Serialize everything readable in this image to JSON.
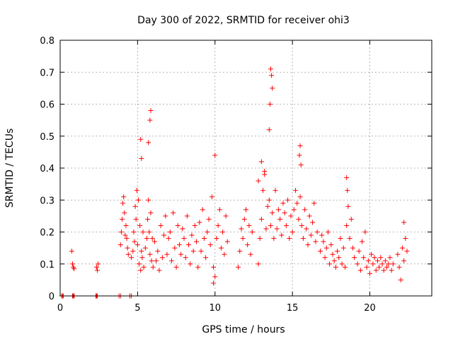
{
  "chart_data": {
    "type": "scatter",
    "title": "Day 300 of 2022, SRMTID for receiver ohi3",
    "xlabel": "GPS time / hours",
    "ylabel": "SRMTID / TECUs",
    "xlim": [
      0,
      24
    ],
    "ylim": [
      0,
      0.8
    ],
    "xticks": [
      0,
      5,
      10,
      15,
      20
    ],
    "yticks": [
      0,
      0.1,
      0.2,
      0.3,
      0.4,
      0.5,
      0.6,
      0.7,
      0.8
    ],
    "xtick_labels": [
      "0",
      "5",
      "10",
      "15",
      "20"
    ],
    "ytick_labels": [
      "0",
      "0.1",
      "0.2",
      "0.3",
      "0.4",
      "0.5",
      "0.6",
      "0.7",
      "0.8"
    ],
    "grid": true,
    "marker": "+",
    "color": "#ff0000",
    "series": [
      {
        "name": "SRMTID",
        "x": [
          0.1,
          0.15,
          0.2,
          0.8,
          0.8,
          0.85,
          0.9,
          0.9,
          2.3,
          2.35,
          2.4,
          3.8,
          3.9,
          4.5,
          4.6,
          0.75,
          0.8,
          0.85,
          0.9,
          2.35,
          2.4,
          2.45,
          3.9,
          3.95,
          4.0,
          4.05,
          4.1,
          4.15,
          4.2,
          4.25,
          4.3,
          4.35,
          4.4,
          4.6,
          4.7,
          4.75,
          4.8,
          4.85,
          4.9,
          4.95,
          5.0,
          5.05,
          5.1,
          5.15,
          5.2,
          5.25,
          5.3,
          5.35,
          5.4,
          5.5,
          5.6,
          5.65,
          5.7,
          5.75,
          5.8,
          5.85,
          5.9,
          5.95,
          6.0,
          6.1,
          6.2,
          6.3,
          6.4,
          6.5,
          6.6,
          6.7,
          6.8,
          6.9,
          7.0,
          7.1,
          7.2,
          7.3,
          7.4,
          7.5,
          7.6,
          7.7,
          7.8,
          7.9,
          8.0,
          8.1,
          8.2,
          8.3,
          8.4,
          8.5,
          8.6,
          8.7,
          8.8,
          8.9,
          9.0,
          9.1,
          9.2,
          9.3,
          9.4,
          9.5,
          9.6,
          9.7,
          9.8,
          9.9,
          10.0,
          10.1,
          10.2,
          10.3,
          10.4,
          10.5,
          10.6,
          10.7,
          10.8,
          11.5,
          11.6,
          11.7,
          11.8,
          11.9,
          12.0,
          12.1,
          12.2,
          12.3,
          12.4,
          12.8,
          12.9,
          13.0,
          13.1,
          13.2,
          13.3,
          13.4,
          13.5,
          13.6,
          13.7,
          13.8,
          13.9,
          14.0,
          14.1,
          14.2,
          14.3,
          14.4,
          14.5,
          14.6,
          14.7,
          14.8,
          14.9,
          15.0,
          15.1,
          15.2,
          15.3,
          15.4,
          15.5,
          15.6,
          15.7,
          15.8,
          15.9,
          16.0,
          16.1,
          16.2,
          16.3,
          16.4,
          16.5,
          16.6,
          16.8,
          16.9,
          17.0,
          17.1,
          17.2,
          17.3,
          17.4,
          17.5,
          17.6,
          17.7,
          17.8,
          17.9,
          18.0,
          18.1,
          18.2,
          18.3,
          18.4,
          18.5,
          18.6,
          18.7,
          18.8,
          18.9,
          19.0,
          19.2,
          19.3,
          19.4,
          19.5,
          19.6,
          19.7,
          19.8,
          19.9,
          20.0,
          20.1,
          20.2,
          20.3,
          20.4,
          20.5,
          20.6,
          20.7,
          20.8,
          20.9,
          21.0,
          21.1,
          21.2,
          21.3,
          21.4,
          21.5,
          21.8,
          21.9,
          22.0,
          22.1,
          22.2,
          22.3,
          22.4,
          5.2,
          5.25,
          5.8,
          5.85,
          5.7,
          13.6,
          13.65,
          13.7,
          13.55,
          13.5,
          15.5,
          15.45,
          15.55,
          18.5,
          18.55,
          12.8,
          13.0,
          13.2,
          10.0,
          9.9,
          22.2
        ],
        "y": [
          0,
          0,
          0,
          0,
          0,
          0,
          0,
          0,
          0,
          0,
          0,
          0,
          0,
          0,
          0,
          0.14,
          0.1,
          0.09,
          0.085,
          0.09,
          0.08,
          0.1,
          0.16,
          0.2,
          0.24,
          0.29,
          0.31,
          0.26,
          0.19,
          0.22,
          0.18,
          0.15,
          0.13,
          0.12,
          0.14,
          0.2,
          0.17,
          0.28,
          0.24,
          0.33,
          0.16,
          0.3,
          0.1,
          0.22,
          0.08,
          0.14,
          0.12,
          0.2,
          0.09,
          0.15,
          0.18,
          0.24,
          0.3,
          0.2,
          0.13,
          0.26,
          0.11,
          0.18,
          0.09,
          0.17,
          0.11,
          0.14,
          0.08,
          0.22,
          0.12,
          0.19,
          0.25,
          0.13,
          0.18,
          0.2,
          0.11,
          0.26,
          0.15,
          0.09,
          0.22,
          0.16,
          0.13,
          0.21,
          0.18,
          0.12,
          0.25,
          0.16,
          0.1,
          0.19,
          0.14,
          0.22,
          0.17,
          0.09,
          0.23,
          0.14,
          0.27,
          0.18,
          0.12,
          0.2,
          0.24,
          0.16,
          0.31,
          0.09,
          0.06,
          0.18,
          0.22,
          0.27,
          0.15,
          0.2,
          0.13,
          0.25,
          0.17,
          0.09,
          0.14,
          0.21,
          0.18,
          0.24,
          0.27,
          0.16,
          0.22,
          0.13,
          0.2,
          0.1,
          0.18,
          0.24,
          0.33,
          0.39,
          0.21,
          0.28,
          0.3,
          0.22,
          0.26,
          0.18,
          0.33,
          0.21,
          0.27,
          0.24,
          0.19,
          0.29,
          0.26,
          0.22,
          0.3,
          0.18,
          0.25,
          0.2,
          0.27,
          0.33,
          0.29,
          0.24,
          0.31,
          0.22,
          0.18,
          0.27,
          0.21,
          0.16,
          0.25,
          0.19,
          0.23,
          0.29,
          0.17,
          0.2,
          0.14,
          0.19,
          0.17,
          0.12,
          0.15,
          0.2,
          0.1,
          0.16,
          0.13,
          0.11,
          0.09,
          0.14,
          0.12,
          0.18,
          0.1,
          0.15,
          0.09,
          0.22,
          0.28,
          0.18,
          0.24,
          0.15,
          0.12,
          0.1,
          0.14,
          0.08,
          0.17,
          0.12,
          0.2,
          0.09,
          0.11,
          0.07,
          0.13,
          0.1,
          0.12,
          0.08,
          0.11,
          0.09,
          0.12,
          0.1,
          0.08,
          0.11,
          0.09,
          0.1,
          0.12,
          0.08,
          0.1,
          0.13,
          0.09,
          0.05,
          0.15,
          0.11,
          0.18,
          0.14,
          0.49,
          0.43,
          0.55,
          0.58,
          0.48,
          0.71,
          0.69,
          0.65,
          0.6,
          0.52,
          0.47,
          0.44,
          0.41,
          0.37,
          0.33,
          0.36,
          0.42,
          0.38,
          0.44,
          0.04,
          0.23
        ]
      }
    ]
  }
}
